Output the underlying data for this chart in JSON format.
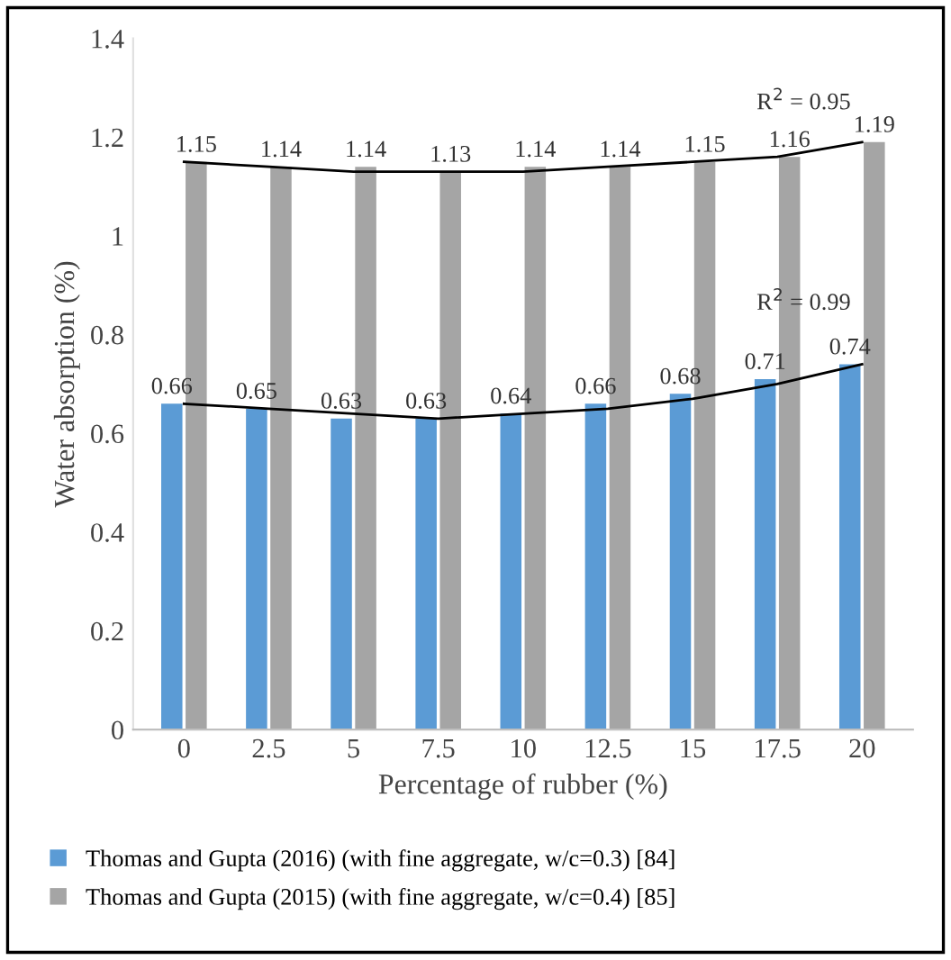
{
  "chart_data": {
    "type": "bar",
    "xlabel": "Percentage of rubber (%)",
    "ylabel": "Water absorption (%)",
    "categories": [
      "0",
      "2.5",
      "5",
      "7.5",
      "10",
      "12.5",
      "15",
      "17.5",
      "20"
    ],
    "series": [
      {
        "name": "Thomas and Gupta (2016) (with fine aggregate, w/c=0.3) [84]",
        "color": "#5b9bd5",
        "values": [
          0.66,
          0.65,
          0.63,
          0.63,
          0.64,
          0.66,
          0.68,
          0.71,
          0.74
        ],
        "value_labels": [
          "0.66",
          "0.65",
          "0.63",
          "0.63",
          "0.64",
          "0.66",
          "0.68",
          "0.71",
          "0.74"
        ]
      },
      {
        "name": "Thomas and Gupta (2015) (with fine aggregate, w/c=0.4) [85]",
        "color": "#a5a5a5",
        "values": [
          1.15,
          1.14,
          1.14,
          1.13,
          1.14,
          1.14,
          1.15,
          1.16,
          1.19
        ],
        "value_labels": [
          "1.15",
          "1.14",
          "1.14",
          "1.13",
          "1.14",
          "1.14",
          "1.15",
          "1.16",
          "1.19"
        ]
      },
      {
        "type": "line",
        "color": "#000000",
        "x": [
          "0",
          "2.5",
          "5",
          "7.5",
          "10",
          "12.5",
          "15",
          "17.5",
          "20"
        ],
        "values": [
          1.15,
          1.14,
          1.13,
          1.13,
          1.13,
          1.14,
          1.15,
          1.16,
          1.19
        ]
      },
      {
        "type": "line",
        "color": "#000000",
        "x": [
          "0",
          "2.5",
          "5",
          "7.5",
          "10",
          "12.5",
          "15",
          "17.5",
          "20"
        ],
        "values": [
          0.66,
          0.65,
          0.64,
          0.63,
          0.64,
          0.65,
          0.67,
          0.7,
          0.74
        ]
      }
    ],
    "ylim": [
      0,
      1.4
    ],
    "yticks": [
      0,
      {
        "value": 0.2,
        "label": "0.2"
      },
      {
        "value": 0.4,
        "label": "0.4"
      },
      {
        "value": 0.6,
        "label": "0.6"
      },
      {
        "value": 0.8,
        "label": "0.8"
      },
      1,
      {
        "value": 1.2,
        "label": "1.2"
      },
      {
        "value": 1.4,
        "label": "1.4"
      }
    ],
    "grid": false,
    "legend": "bottom",
    "marker": "none",
    "line_style": "solid",
    "annotations": [
      "R$^{2}$ = 0.95",
      "R$^{2}$ = 0.99"
    ]
  }
}
